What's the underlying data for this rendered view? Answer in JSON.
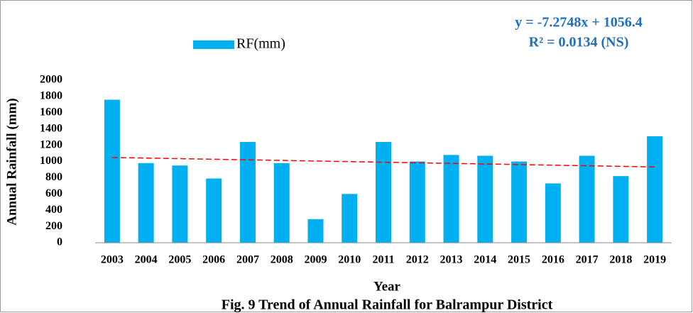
{
  "chart_data": {
    "type": "bar",
    "title": "Fig. 9 Trend of Annual Rainfall for Balrampur District",
    "x_label": "Year",
    "y_label": "Annual Rainfall (mm)",
    "categories": [
      "2003",
      "2004",
      "2005",
      "2006",
      "2007",
      "2008",
      "2009",
      "2010",
      "2011",
      "2012",
      "2013",
      "2014",
      "2015",
      "2016",
      "2017",
      "2018",
      "2019"
    ],
    "series": [
      {
        "name": "RF(mm)",
        "color": "#00b0f0",
        "values": [
          1760,
          980,
          950,
          790,
          1240,
          980,
          290,
          600,
          1240,
          1000,
          1080,
          1070,
          1000,
          730,
          1070,
          820,
          1310
        ]
      }
    ],
    "ylim": [
      0,
      2000
    ],
    "yticks": [
      0,
      200,
      400,
      600,
      800,
      1000,
      1200,
      1400,
      1600,
      1800,
      2000
    ],
    "trendline": {
      "equation": "y = -7.2748x + 1056.4",
      "r2": "R² = 0.0134  (NS)",
      "slope": -7.2748,
      "intercept": 1056.4,
      "color": "#ff0000"
    },
    "grid": false,
    "legend": "top"
  }
}
